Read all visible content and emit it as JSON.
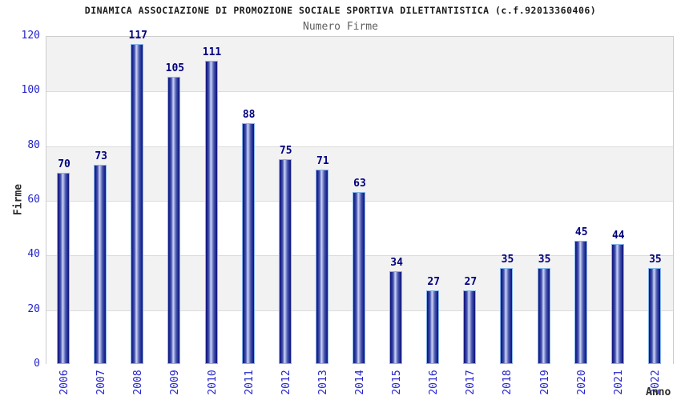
{
  "header": {
    "title": "DINAMICA ASSOCIAZIONE DI PROMOZIONE SOCIALE SPORTIVA DILETTANTISTICA (c.f.92013360406)",
    "subtitle": "Numero Firme"
  },
  "chart_data": {
    "type": "bar",
    "title": "DINAMICA ASSOCIAZIONE DI PROMOZIONE SOCIALE SPORTIVA DILETTANTISTICA (c.f.92013360406)",
    "subtitle": "Numero Firme",
    "xlabel": "Anno",
    "ylabel": "Firme",
    "categories": [
      "2006",
      "2007",
      "2008",
      "2009",
      "2010",
      "2011",
      "2012",
      "2013",
      "2014",
      "2015",
      "2016",
      "2017",
      "2018",
      "2019",
      "2020",
      "2021",
      "2022"
    ],
    "values": [
      70,
      73,
      117,
      105,
      111,
      88,
      75,
      71,
      63,
      34,
      27,
      27,
      35,
      35,
      45,
      44,
      35
    ],
    "ylim": [
      0,
      120
    ],
    "yticks": [
      0,
      20,
      40,
      60,
      80,
      100,
      120
    ],
    "grid": true,
    "legend_position": "none",
    "bar_value_labels": true,
    "x_tick_rotation_deg": 90
  },
  "colors": {
    "bar_dark": "#10157a",
    "bar_highlight": "#ccd4f4",
    "bar_border": "#85b6ea",
    "value_label": "#00007d",
    "tick_label": "#2424cc",
    "band_gray": "#f2f2f2",
    "band_white": "#ffffff",
    "plot_border": "#cccccc",
    "title": "#1a1a1a",
    "subtitle": "#5f5f5f",
    "axis_title": "#2b2b2b"
  }
}
